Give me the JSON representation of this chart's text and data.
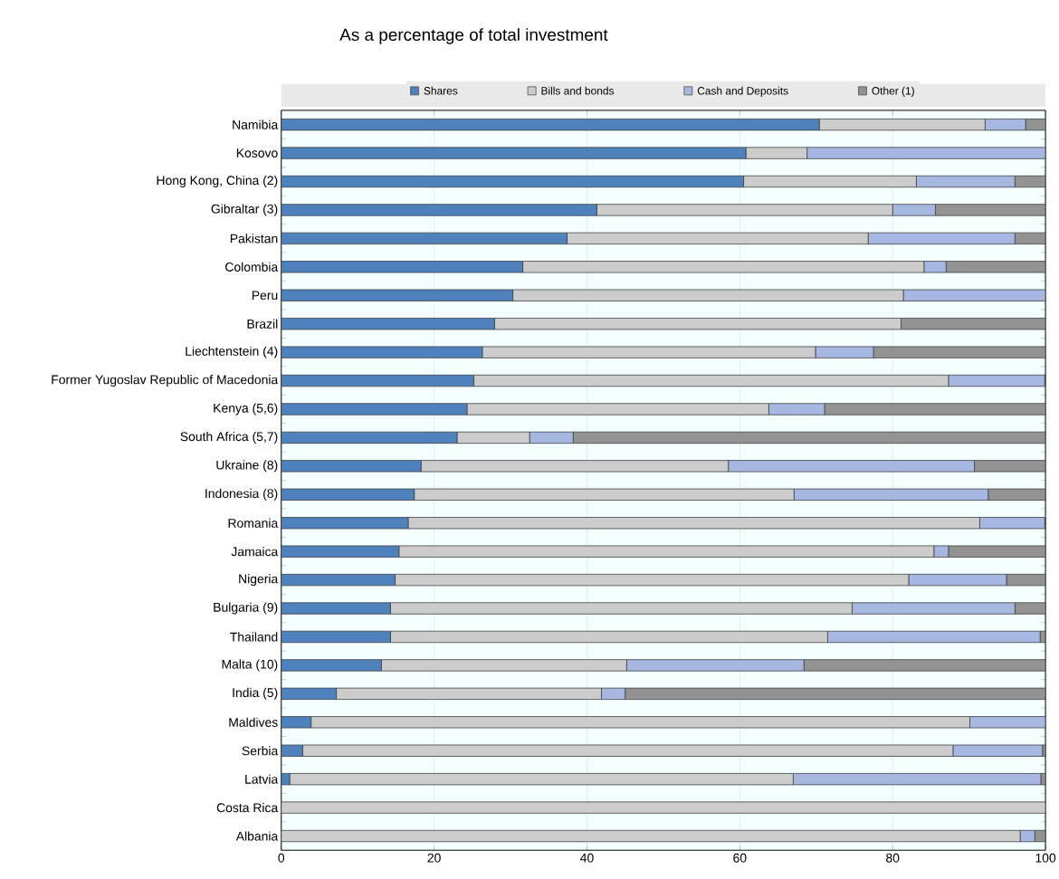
{
  "chart_data": {
    "type": "bar",
    "orientation": "horizontal",
    "stacked": true,
    "title": "As a percentage of total investment",
    "categories": [
      "Namibia",
      "Kosovo",
      "Hong Kong, China (2)",
      "Gibraltar (3)",
      "Pakistan",
      "Colombia",
      "Peru",
      "Brazil",
      "Liechtenstein (4)",
      "Former Yugoslav Republic of Macedonia",
      "Kenya (5,6)",
      "South Africa (5,7)",
      "Ukraine (8)",
      "Indonesia (8)",
      "Romania",
      "Jamaica",
      "Nigeria",
      "Bulgaria (9)",
      "Thailand",
      "Malta (10)",
      "India (5)",
      "Maldives",
      "Serbia",
      "Latvia",
      "Costa Rica",
      "Albania"
    ],
    "series": [
      {
        "name": "Shares",
        "color": "#4f81bd",
        "values": [
          70.4,
          60.8,
          60.5,
          41.3,
          37.4,
          31.6,
          30.3,
          27.9,
          26.3,
          25.2,
          24.3,
          23.0,
          18.3,
          17.4,
          16.6,
          15.4,
          14.9,
          14.3,
          14.3,
          13.1,
          7.2,
          3.9,
          2.8,
          1.1,
          0,
          0
        ]
      },
      {
        "name": "Bills and bonds",
        "color": "#cccccc",
        "values": [
          21.7,
          8.0,
          22.6,
          38.7,
          39.4,
          52.5,
          51.1,
          53.2,
          43.6,
          62.1,
          39.5,
          9.5,
          40.2,
          49.7,
          74.8,
          70.0,
          67.2,
          60.4,
          57.2,
          32.1,
          34.7,
          86.2,
          85.1,
          65.9,
          100,
          96.7
        ]
      },
      {
        "name": "Cash and Deposits",
        "color": "#a6b8e2",
        "values": [
          5.3,
          31.2,
          12.9,
          5.6,
          19.2,
          2.9,
          18.6,
          0,
          7.6,
          12.6,
          7.3,
          5.7,
          32.2,
          25.4,
          8.5,
          1.9,
          12.8,
          21.3,
          27.8,
          23.2,
          3.1,
          9.9,
          11.7,
          32.4,
          0,
          1.9
        ]
      },
      {
        "name": "Other (1)",
        "color": "#939393",
        "values": [
          2.6,
          0,
          4.0,
          14.4,
          4.0,
          13.0,
          0,
          18.9,
          22.5,
          0.1,
          28.9,
          61.8,
          9.3,
          7.5,
          0.1,
          12.7,
          5.1,
          4.0,
          0.7,
          31.6,
          55.0,
          0,
          0.4,
          0.6,
          0,
          1.4
        ]
      }
    ],
    "xlim": [
      0,
      100
    ],
    "xticks": [
      0,
      20,
      40,
      60,
      80,
      100
    ],
    "grid": "x",
    "legend": "top"
  }
}
